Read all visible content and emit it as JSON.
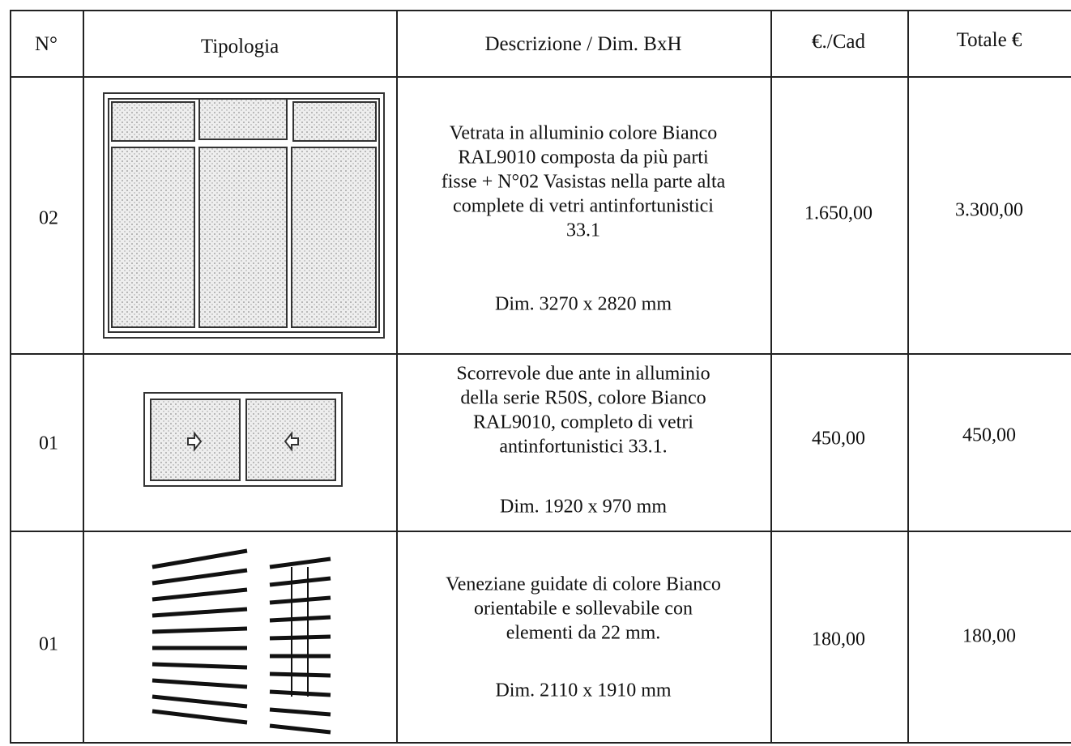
{
  "table": {
    "header": [
      "N°",
      "Tipologia",
      "Descrizione / Dim. BxH",
      "€./Cad",
      "Totale €"
    ],
    "rows": [
      {
        "n": "02",
        "description": [
          "Vetrata in alluminio colore Bianco",
          "RAL9010 composta da più parti",
          "fisse + N°02 Vasistas nella parte alta",
          "complete di vetri antinfortunistici",
          "33.1"
        ],
        "dimensions": "Dim. 3270 x 2820 mm",
        "unit_price": "1.650,00",
        "total": "3.300,00"
      },
      {
        "n": "01",
        "description": [
          "Scorrevole due ante in alluminio",
          "della serie R50S, colore Bianco",
          "RAL9010, completo di vetri",
          "antinfortunistici 33.1."
        ],
        "dimensions": "Dim. 1920 x 970 mm",
        "unit_price": "450,00",
        "total": "450,00"
      },
      {
        "n": "01",
        "description": [
          "Veneziane guidate di colore Bianco",
          "orientabile e sollevabile con",
          "elementi da 22 mm."
        ],
        "dimensions": "Dim. 2110 x 1910 mm",
        "unit_price": "180,00",
        "total": "180,00"
      }
    ]
  }
}
